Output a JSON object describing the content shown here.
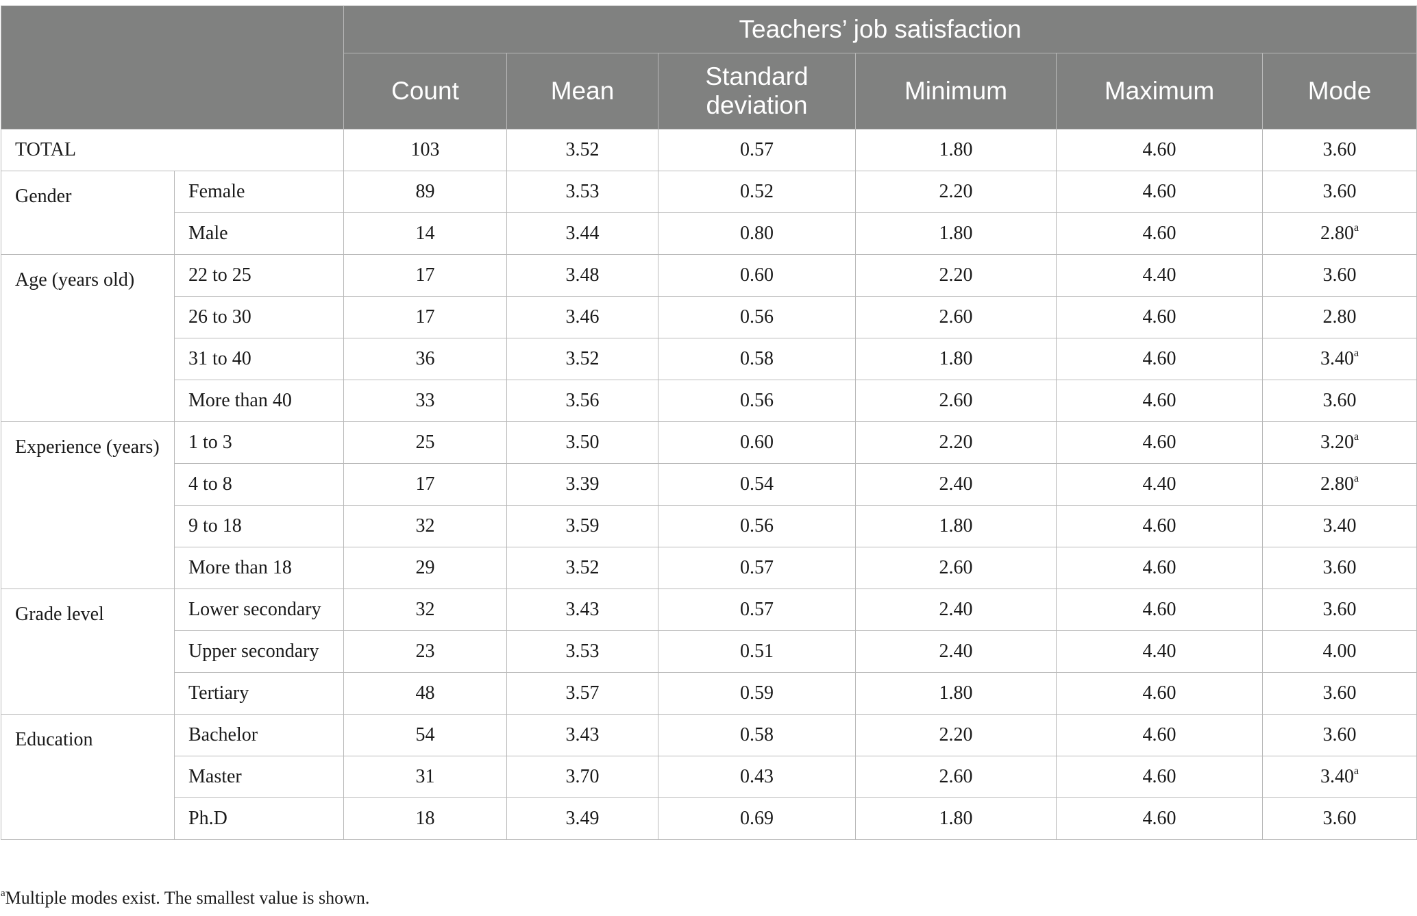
{
  "header": {
    "group_title": "Teachers’ job satisfaction",
    "columns": [
      "Count",
      "Mean",
      "Standard deviation",
      "Minimum",
      "Maximum",
      "Mode"
    ]
  },
  "total": {
    "label": "TOTAL",
    "values": [
      "103",
      "3.52",
      "0.57",
      "1.80",
      "4.60",
      "3.60"
    ],
    "mode_footnote": ""
  },
  "groups": [
    {
      "label": "Gender",
      "rows": [
        {
          "label": "Female",
          "values": [
            "89",
            "3.53",
            "0.52",
            "2.20",
            "4.60",
            "3.60"
          ],
          "mode_footnote": ""
        },
        {
          "label": "Male",
          "values": [
            "14",
            "3.44",
            "0.80",
            "1.80",
            "4.60",
            "2.80"
          ],
          "mode_footnote": "a"
        }
      ]
    },
    {
      "label": "Age (years old)",
      "rows": [
        {
          "label": "22 to 25",
          "values": [
            "17",
            "3.48",
            "0.60",
            "2.20",
            "4.40",
            "3.60"
          ],
          "mode_footnote": ""
        },
        {
          "label": "26 to 30",
          "values": [
            "17",
            "3.46",
            "0.56",
            "2.60",
            "4.60",
            "2.80"
          ],
          "mode_footnote": ""
        },
        {
          "label": "31 to 40",
          "values": [
            "36",
            "3.52",
            "0.58",
            "1.80",
            "4.60",
            "3.40"
          ],
          "mode_footnote": "a"
        },
        {
          "label": "More than 40",
          "values": [
            "33",
            "3.56",
            "0.56",
            "2.60",
            "4.60",
            "3.60"
          ],
          "mode_footnote": ""
        }
      ]
    },
    {
      "label": "Experience (years)",
      "rows": [
        {
          "label": "1 to 3",
          "values": [
            "25",
            "3.50",
            "0.60",
            "2.20",
            "4.60",
            "3.20"
          ],
          "mode_footnote": "a"
        },
        {
          "label": "4 to 8",
          "values": [
            "17",
            "3.39",
            "0.54",
            "2.40",
            "4.40",
            "2.80"
          ],
          "mode_footnote": "a"
        },
        {
          "label": "9 to 18",
          "values": [
            "32",
            "3.59",
            "0.56",
            "1.80",
            "4.60",
            "3.40"
          ],
          "mode_footnote": ""
        },
        {
          "label": "More than 18",
          "values": [
            "29",
            "3.52",
            "0.57",
            "2.60",
            "4.60",
            "3.60"
          ],
          "mode_footnote": ""
        }
      ]
    },
    {
      "label": "Grade level",
      "rows": [
        {
          "label": "Lower secondary",
          "values": [
            "32",
            "3.43",
            "0.57",
            "2.40",
            "4.60",
            "3.60"
          ],
          "mode_footnote": ""
        },
        {
          "label": "Upper secondary",
          "values": [
            "23",
            "3.53",
            "0.51",
            "2.40",
            "4.40",
            "4.00"
          ],
          "mode_footnote": ""
        },
        {
          "label": "Tertiary",
          "values": [
            "48",
            "3.57",
            "0.59",
            "1.80",
            "4.60",
            "3.60"
          ],
          "mode_footnote": ""
        }
      ]
    },
    {
      "label": "Education",
      "rows": [
        {
          "label": "Bachelor",
          "values": [
            "54",
            "3.43",
            "0.58",
            "2.20",
            "4.60",
            "3.60"
          ],
          "mode_footnote": ""
        },
        {
          "label": "Master",
          "values": [
            "31",
            "3.70",
            "0.43",
            "2.60",
            "4.60",
            "3.40"
          ],
          "mode_footnote": "a"
        },
        {
          "label": "Ph.D",
          "values": [
            "18",
            "3.49",
            "0.69",
            "1.80",
            "4.60",
            "3.60"
          ],
          "mode_footnote": ""
        }
      ]
    }
  ],
  "footnote": {
    "marker": "a",
    "text": "Multiple modes exist. The smallest value is shown."
  }
}
